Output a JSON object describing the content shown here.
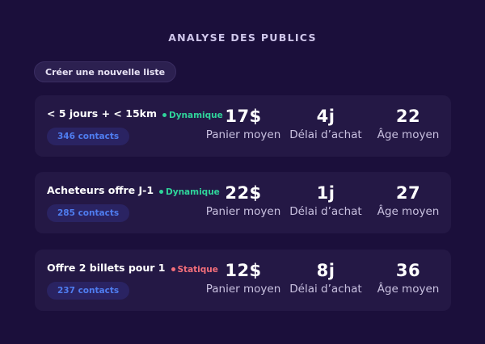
{
  "page": {
    "title": "ANALYSE DES PUBLICS",
    "new_list_button": "Créer une nouvelle liste"
  },
  "colors": {
    "dynamic": "#2fd39a",
    "static": "#f46e7a",
    "contacts": "#4f7df0"
  },
  "audiences": [
    {
      "name": "< 5 jours + < 15km",
      "type": "Dynamique",
      "contacts": "346 contacts",
      "metrics": [
        {
          "value": "17$",
          "label": "Panier moyen"
        },
        {
          "value": "4j",
          "label": "Délai d’achat"
        },
        {
          "value": "22",
          "label": "Âge moyen"
        }
      ]
    },
    {
      "name": "Acheteurs offre J-1",
      "type": "Dynamique",
      "contacts": "285 contacts",
      "metrics": [
        {
          "value": "22$",
          "label": "Panier moyen"
        },
        {
          "value": "1j",
          "label": "Délai d’achat"
        },
        {
          "value": "27",
          "label": "Âge moyen"
        }
      ]
    },
    {
      "name": "Offre 2 billets pour 1",
      "type": "Statique",
      "contacts": "237 contacts",
      "metrics": [
        {
          "value": "12$",
          "label": "Panier moyen"
        },
        {
          "value": "8j",
          "label": "Délai d’achat"
        },
        {
          "value": "36",
          "label": "Âge moyen"
        }
      ]
    }
  ]
}
